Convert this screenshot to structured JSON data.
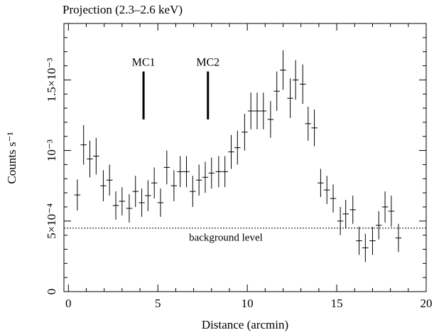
{
  "chart_data": {
    "type": "errorbar",
    "title": "Projection (2.3–2.6 keV)",
    "x_label": "Distance (arcmin)",
    "y_label": "Counts s⁻¹",
    "xlim": [
      -0.25,
      20
    ],
    "ylim": [
      0,
      0.0019
    ],
    "xticks": [
      0,
      5,
      10,
      15,
      20
    ],
    "yticks": [
      0,
      {
        "value": 0.0005,
        "label": "5×10⁻⁴"
      },
      {
        "value": 0.001,
        "label": "10⁻³"
      },
      {
        "value": 0.0015,
        "label": "1.5×10⁻³"
      }
    ],
    "color": "#000000",
    "x": [
      0.5,
      0.85,
      1.2,
      1.55,
      1.95,
      2.3,
      2.65,
      3.0,
      3.4,
      3.75,
      4.1,
      4.45,
      4.8,
      5.15,
      5.5,
      5.9,
      6.25,
      6.6,
      6.95,
      7.3,
      7.65,
      8.0,
      8.4,
      8.75,
      9.1,
      9.45,
      9.85,
      10.2,
      10.55,
      10.9,
      11.3,
      11.65,
      12.0,
      12.4,
      12.7,
      13.1,
      13.4,
      13.75,
      14.1,
      14.45,
      14.8,
      15.2,
      15.5,
      15.9,
      16.25,
      16.6,
      17.0,
      17.35,
      17.7,
      18.05,
      18.45
    ],
    "xerr": 0.17,
    "values": [
      0.000685,
      0.00104,
      0.00094,
      0.00096,
      0.00075,
      0.00079,
      0.00061,
      0.00064,
      0.00059,
      0.00071,
      0.00063,
      0.00068,
      0.00077,
      0.00063,
      0.00088,
      0.00075,
      0.00085,
      0.00085,
      0.00071,
      0.00079,
      0.00081,
      0.00084,
      0.00085,
      0.00085,
      0.00099,
      0.00102,
      0.00113,
      0.00128,
      0.00128,
      0.00128,
      0.00122,
      0.00142,
      0.00157,
      0.00137,
      0.0015,
      0.00147,
      0.00119,
      0.00116,
      0.00077,
      0.00072,
      0.00066,
      0.0005,
      0.00055,
      0.00058,
      0.00036,
      0.00031,
      0.00036,
      0.00047,
      0.0006,
      0.00057,
      0.00038
    ],
    "yerr": [
      0.00011,
      0.00014,
      0.00013,
      0.00013,
      0.00011,
      0.00011,
      0.0001,
      0.0001,
      0.0001,
      0.00011,
      0.0001,
      0.00011,
      0.00011,
      0.0001,
      0.00012,
      0.00011,
      0.00011,
      0.00011,
      0.00011,
      0.00011,
      0.00011,
      0.00011,
      0.00011,
      0.00011,
      0.00012,
      0.00012,
      0.00013,
      0.00013,
      0.00013,
      0.00013,
      0.00013,
      0.00014,
      0.00014,
      0.00014,
      0.00014,
      0.00014,
      0.00012,
      0.00013,
      0.0001,
      0.0001,
      0.0001,
      0.0001,
      0.0001,
      0.0001,
      0.0001,
      0.0001,
      0.0001,
      0.0001,
      0.00011,
      0.00011,
      0.0001
    ],
    "background": {
      "label": "background level",
      "value": 0.00045,
      "label_x": 8.8
    },
    "annotations": [
      {
        "text": "MC1",
        "x": 4.2,
        "y1": 0.00122,
        "y2": 0.00156
      },
      {
        "text": "MC2",
        "x": 7.8,
        "y1": 0.00122,
        "y2": 0.00156
      }
    ]
  }
}
